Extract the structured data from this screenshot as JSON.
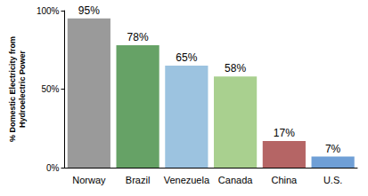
{
  "chart_data": {
    "type": "bar",
    "y_label": "% Domestic Electricity from\nHydroelectric Power",
    "categories": [
      "Norway",
      "Brazil",
      "Venezuela",
      "Canada",
      "China",
      "U.S."
    ],
    "values": [
      95,
      78,
      65,
      58,
      17,
      7
    ],
    "value_labels": [
      "95%",
      "78%",
      "65%",
      "58%",
      "17%",
      "7%"
    ],
    "colors": [
      "#9a9a9a",
      "#66a266",
      "#9cc3e0",
      "#a9d08f",
      "#b56565",
      "#6f9fd6"
    ],
    "ylim": [
      0,
      100
    ],
    "yticks": [
      {
        "value": 0,
        "label": "0%"
      },
      {
        "value": 50,
        "label": "50%"
      },
      {
        "value": 100,
        "label": "100%"
      }
    ],
    "grid": false,
    "data_labels": true
  }
}
